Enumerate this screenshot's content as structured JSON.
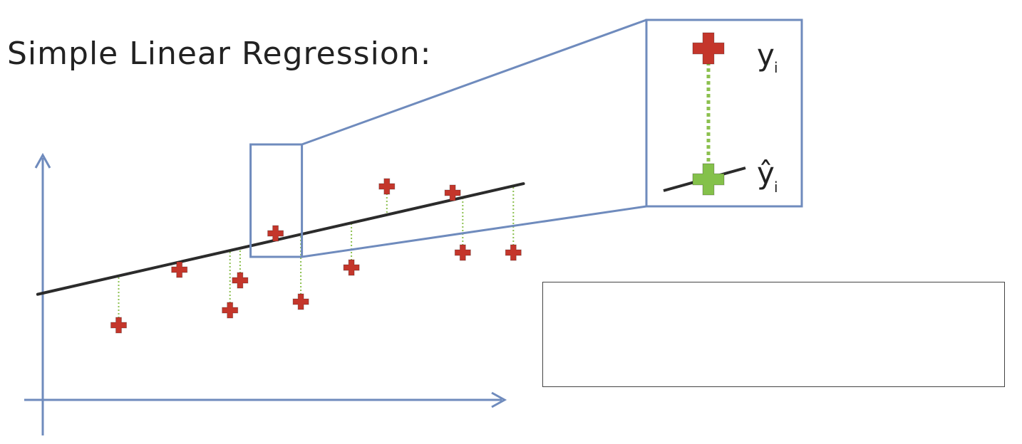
{
  "title": "Simple Linear Regression:",
  "zoom_labels": {
    "observed": "y",
    "observed_subscript": "i",
    "predicted": "ŷ",
    "predicted_subscript": "i"
  },
  "colors": {
    "axis": "#6f8bbd",
    "regression_line": "#2b2b2b",
    "observed_point": "#c4362b",
    "predicted_point": "#84c14a",
    "residual": "#8cc04f",
    "zoom_frame": "#6f8bbd"
  },
  "chart_data": {
    "type": "scatter",
    "title": "Simple Linear Regression:",
    "xlabel": "",
    "ylabel": "",
    "grid": false,
    "regression_line": {
      "intercept": 1.0,
      "slope": 0.27
    },
    "points": [
      {
        "x": 1.5,
        "y": 0.25
      },
      {
        "x": 2.7,
        "y": 1.55
      },
      {
        "x": 3.7,
        "y": 0.6
      },
      {
        "x": 3.9,
        "y": 1.3
      },
      {
        "x": 4.6,
        "y": 2.4
      },
      {
        "x": 5.1,
        "y": 0.8
      },
      {
        "x": 6.1,
        "y": 1.6
      },
      {
        "x": 6.8,
        "y": 3.5
      },
      {
        "x": 8.1,
        "y": 3.35
      },
      {
        "x": 8.3,
        "y": 1.95
      },
      {
        "x": 9.3,
        "y": 1.95
      }
    ],
    "highlighted_point_index": 4,
    "xlim": [
      0,
      10
    ],
    "ylim": [
      -1.5,
      4.5
    ]
  }
}
